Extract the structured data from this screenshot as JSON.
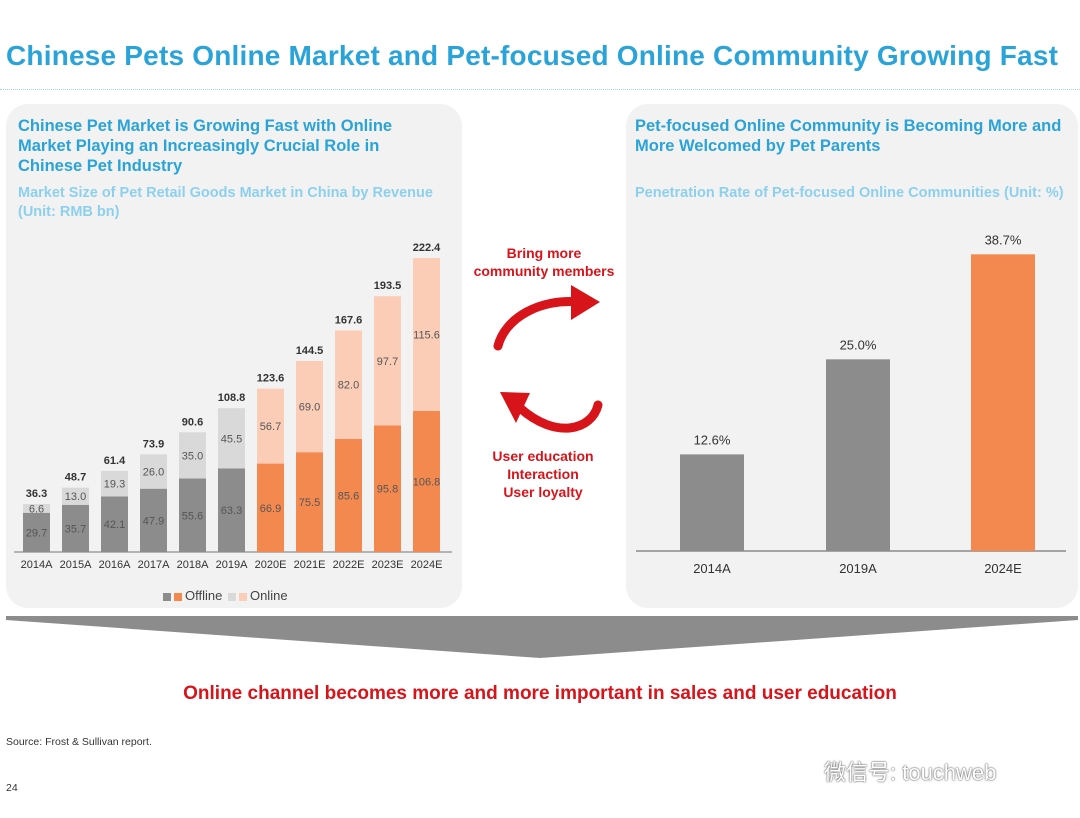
{
  "title": "Chinese Pets Online Market and Pet-focused Online Community Growing Fast",
  "left_panel": {
    "heading": "Chinese Pet Market is Growing Fast with Online Market Playing an Increasingly Crucial Role in Chinese Pet Industry",
    "subtitle": "Market Size of Pet Retail Goods Market in China by Revenue (Unit: RMB bn)"
  },
  "right_panel": {
    "heading": "Pet-focused Online Community is Becoming More and More Welcomed by Pet Parents",
    "subtitle": "Penetration Rate of Pet-focused Online Communities (Unit: %)"
  },
  "arrows": {
    "top_lines": [
      "Bring more",
      "community members"
    ],
    "bottom_lines": [
      "User education",
      "Interaction",
      "User loyalty"
    ]
  },
  "conclusion": "Online channel becomes more and more important in sales and user education",
  "source": "Source: Frost & Sullivan report.",
  "page_number": "24",
  "watermark": "微信号: touchweb",
  "colors": {
    "title_blue": "#2aa3d9",
    "offline_actual": "#8c8c8c",
    "online_actual": "#d9d9d9",
    "offline_estimate": "#f4894f",
    "online_estimate": "#fbcdb6",
    "accent_red": "#d7141a"
  },
  "chart_data": [
    {
      "type": "bar",
      "stacked": true,
      "categories": [
        "2014A",
        "2015A",
        "2016A",
        "2017A",
        "2018A",
        "2019A",
        "2020E",
        "2021E",
        "2022E",
        "2023E",
        "2024E"
      ],
      "series": [
        {
          "name": "Offline",
          "values": [
            29.7,
            35.7,
            42.1,
            47.9,
            55.6,
            63.3,
            66.9,
            75.5,
            85.6,
            95.8,
            106.8
          ]
        },
        {
          "name": "Online",
          "values": [
            6.6,
            13.0,
            19.3,
            26.0,
            35.0,
            45.5,
            56.7,
            69.0,
            82.0,
            97.7,
            115.6
          ]
        }
      ],
      "totals": [
        36.3,
        48.7,
        61.4,
        73.9,
        90.6,
        108.8,
        123.6,
        144.5,
        167.6,
        193.5,
        222.4
      ],
      "segment_labels_offline": [
        "29.7",
        "35.7",
        "42.1",
        "47.9",
        "55.6",
        "63.3",
        "66.9",
        "75.5",
        "85.6",
        "95.8",
        "106.8"
      ],
      "segment_labels_online": [
        "6.6",
        "13.0",
        "19.3",
        "26.0",
        "35.0",
        "45.5",
        "56.7",
        "69.0",
        "82.0",
        "97.7",
        "115.6"
      ],
      "total_labels": [
        "36.3",
        "48.7",
        "61.4",
        "73.9",
        "90.6",
        "108.8",
        "123.6",
        "144.5",
        "167.6",
        "193.5",
        "222.4"
      ],
      "estimate_from_index": 6,
      "legend": [
        "Offline",
        "Online"
      ],
      "ylim": [
        0,
        230
      ]
    },
    {
      "type": "bar",
      "categories": [
        "2014A",
        "2019A",
        "2024E"
      ],
      "values": [
        12.6,
        25.0,
        38.7
      ],
      "value_labels": [
        "12.6%",
        "25.0%",
        "38.7%"
      ],
      "estimate_from_index": 2,
      "ylim": [
        0,
        42
      ]
    }
  ]
}
